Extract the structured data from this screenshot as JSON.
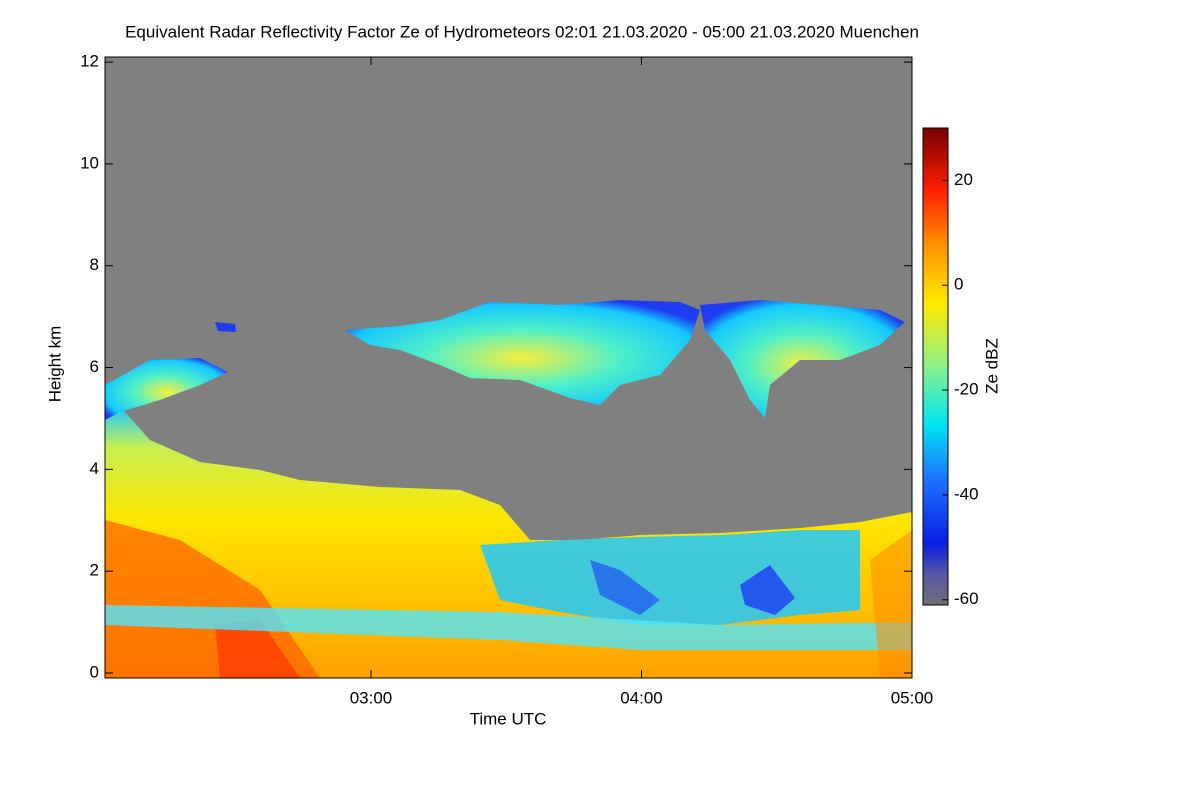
{
  "chart_data": {
    "type": "heatmap",
    "title": "Equivalent Radar Reflectivity Factor Ze of Hydrometeors   02:01 21.03.2020 - 05:00 21.03.2020 Muenchen",
    "xlabel": "Time UTC",
    "ylabel": "Height km",
    "colorbar_label": "Ze dBZ",
    "xlim": [
      121,
      300
    ],
    "xticks": [
      {
        "value": 180,
        "label": "03:00"
      },
      {
        "value": 240,
        "label": "04:00"
      },
      {
        "value": 300,
        "label": "05:00"
      }
    ],
    "ylim": [
      0,
      12.1
    ],
    "yticks": [
      0,
      2,
      4,
      6,
      8,
      10,
      12
    ],
    "clim": [
      -61,
      30
    ],
    "cticks": [
      -60,
      -40,
      -20,
      0,
      20
    ]
  }
}
